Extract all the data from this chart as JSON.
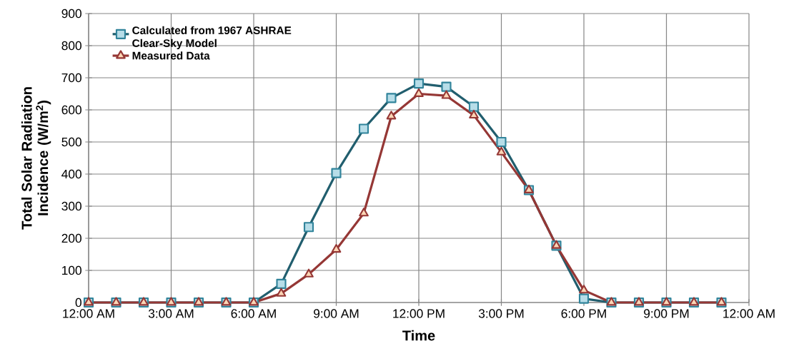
{
  "chart_data": {
    "type": "line",
    "xlabel": "Time",
    "ylabel": "Total Solar Radiation Incidence (W/m$^{2}$)",
    "x": [
      0,
      1,
      2,
      3,
      4,
      5,
      6,
      7,
      8,
      9,
      10,
      11,
      12,
      13,
      14,
      15,
      16,
      17,
      18,
      19,
      20,
      21,
      22,
      23
    ],
    "series": [
      {
        "name": "Calculated from 1967 ASHRAE Clear-Sky Model",
        "color": "#215e6e",
        "marker": "square",
        "values": [
          0,
          0,
          0,
          0,
          0,
          0,
          0,
          58,
          235,
          403,
          541,
          637,
          682,
          672,
          610,
          500,
          350,
          177,
          12,
          0,
          0,
          0,
          0,
          0
        ]
      },
      {
        "name": "Measured Data",
        "color": "#953735",
        "marker": "triangle",
        "values": [
          0,
          0,
          0,
          0,
          0,
          0,
          0,
          28,
          88,
          165,
          278,
          580,
          650,
          644,
          583,
          468,
          350,
          177,
          38,
          0,
          0,
          0,
          0,
          0
        ]
      }
    ],
    "xlim": [
      0,
      24
    ],
    "xticks": [
      {
        "value": 0,
        "label": "12:00 AM"
      },
      {
        "value": 3,
        "label": "3:00 AM"
      },
      {
        "value": 6,
        "label": "6:00 AM"
      },
      {
        "value": 9,
        "label": "9:00 AM"
      },
      {
        "value": 12,
        "label": "12:00 PM"
      },
      {
        "value": 15,
        "label": "3:00 PM"
      },
      {
        "value": 18,
        "label": "6:00 PM"
      },
      {
        "value": 21,
        "label": "9:00 PM"
      },
      {
        "value": 24,
        "label": "12:00 AM"
      }
    ],
    "ylim": [
      0,
      900
    ],
    "yticks": [
      0,
      100,
      200,
      300,
      400,
      500,
      600,
      700,
      800,
      900
    ],
    "grid": true,
    "legend": "top left",
    "line_style": "solid"
  }
}
